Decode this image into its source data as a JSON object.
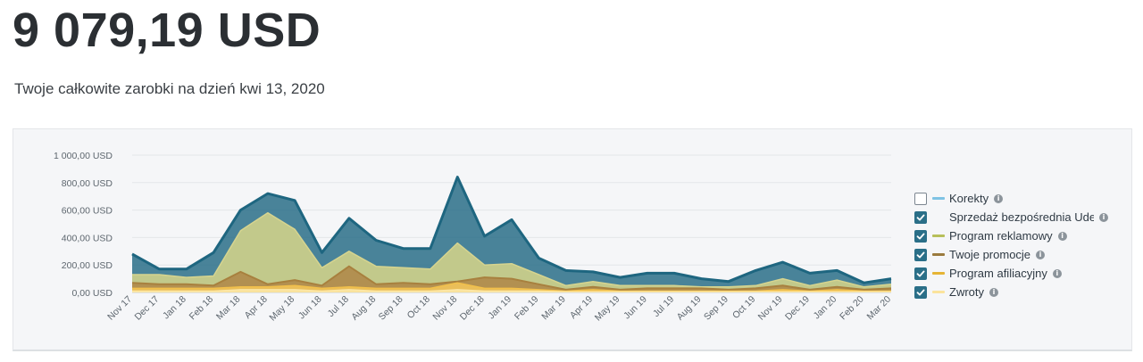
{
  "header": {
    "total": "9 079,19 USD",
    "subtitle": "Twoje całkowite zarobki na dzień kwi 13, 2020"
  },
  "colors": {
    "Korekty": "#7ec3e4",
    "Sprzedaż bezpośrednia Udemy": "#2a6f88",
    "Program reklamowy": "#cfd08a",
    "Twoje promocje": "#b08a4a",
    "Program afiliacyjny": "#f0c35a",
    "Zwroty": "#fbe6a4"
  },
  "legend": [
    {
      "label": "Korekty",
      "checked": false,
      "swatch": "#7ec3e4"
    },
    {
      "label": "Sprzedaż bezpośrednia Udemy",
      "checked": true,
      "swatch": ""
    },
    {
      "label": "Program reklamowy",
      "checked": true,
      "swatch": "#b7bf5a"
    },
    {
      "label": "Twoje promocje",
      "checked": true,
      "swatch": "#9a7a3e"
    },
    {
      "label": "Program afiliacyjny",
      "checked": true,
      "swatch": "#e6b435"
    },
    {
      "label": "Zwroty",
      "checked": true,
      "swatch": "#fbe39c"
    }
  ],
  "chart_data": {
    "type": "area",
    "stacked": false,
    "title": "",
    "xlabel": "",
    "ylabel": "",
    "ylim": [
      0,
      1000
    ],
    "y_ticks": [
      "0,00 USD",
      "200,00 USD",
      "400,00 USD",
      "600,00 USD",
      "800,00 USD",
      "1 000,00 USD"
    ],
    "categories": [
      "Nov 17",
      "Dec 17",
      "Jan 18",
      "Feb 18",
      "Mar 18",
      "Apr 18",
      "May 18",
      "Jun 18",
      "Jul 18",
      "Aug 18",
      "Sep 18",
      "Oct 18",
      "Nov 18",
      "Dec 18",
      "Jan 19",
      "Feb 19",
      "Mar 19",
      "Apr 19",
      "May 19",
      "Jun 19",
      "Jul 19",
      "Aug 19",
      "Sep 19",
      "Oct 19",
      "Nov 19",
      "Dec 19",
      "Jan 20",
      "Feb 20",
      "Mar 20"
    ],
    "series": [
      {
        "name": "Sprzedaż bezpośrednia Udemy",
        "values": [
          280,
          170,
          170,
          290,
          600,
          720,
          670,
          290,
          540,
          380,
          320,
          320,
          840,
          410,
          530,
          250,
          160,
          150,
          110,
          140,
          140,
          100,
          80,
          160,
          220,
          140,
          160,
          70,
          100
        ]
      },
      {
        "name": "Program reklamowy",
        "values": [
          130,
          130,
          110,
          120,
          450,
          580,
          460,
          180,
          300,
          190,
          180,
          170,
          360,
          200,
          210,
          130,
          50,
          80,
          50,
          50,
          50,
          40,
          40,
          50,
          100,
          50,
          90,
          40,
          60
        ]
      },
      {
        "name": "Twoje promocje",
        "values": [
          70,
          60,
          60,
          50,
          150,
          60,
          90,
          50,
          190,
          60,
          70,
          60,
          80,
          110,
          100,
          60,
          20,
          40,
          20,
          30,
          30,
          30,
          20,
          30,
          50,
          20,
          40,
          20,
          30
        ]
      },
      {
        "name": "Program afiliacyjny",
        "values": [
          30,
          30,
          30,
          30,
          40,
          40,
          50,
          30,
          40,
          30,
          30,
          30,
          70,
          30,
          30,
          20,
          10,
          20,
          10,
          10,
          10,
          10,
          10,
          10,
          20,
          10,
          20,
          10,
          10
        ]
      },
      {
        "name": "Zwroty",
        "values": [
          10,
          10,
          10,
          10,
          20,
          20,
          20,
          10,
          20,
          10,
          10,
          10,
          20,
          10,
          10,
          10,
          5,
          5,
          5,
          5,
          5,
          5,
          5,
          5,
          5,
          5,
          5,
          5,
          5
        ]
      }
    ]
  }
}
